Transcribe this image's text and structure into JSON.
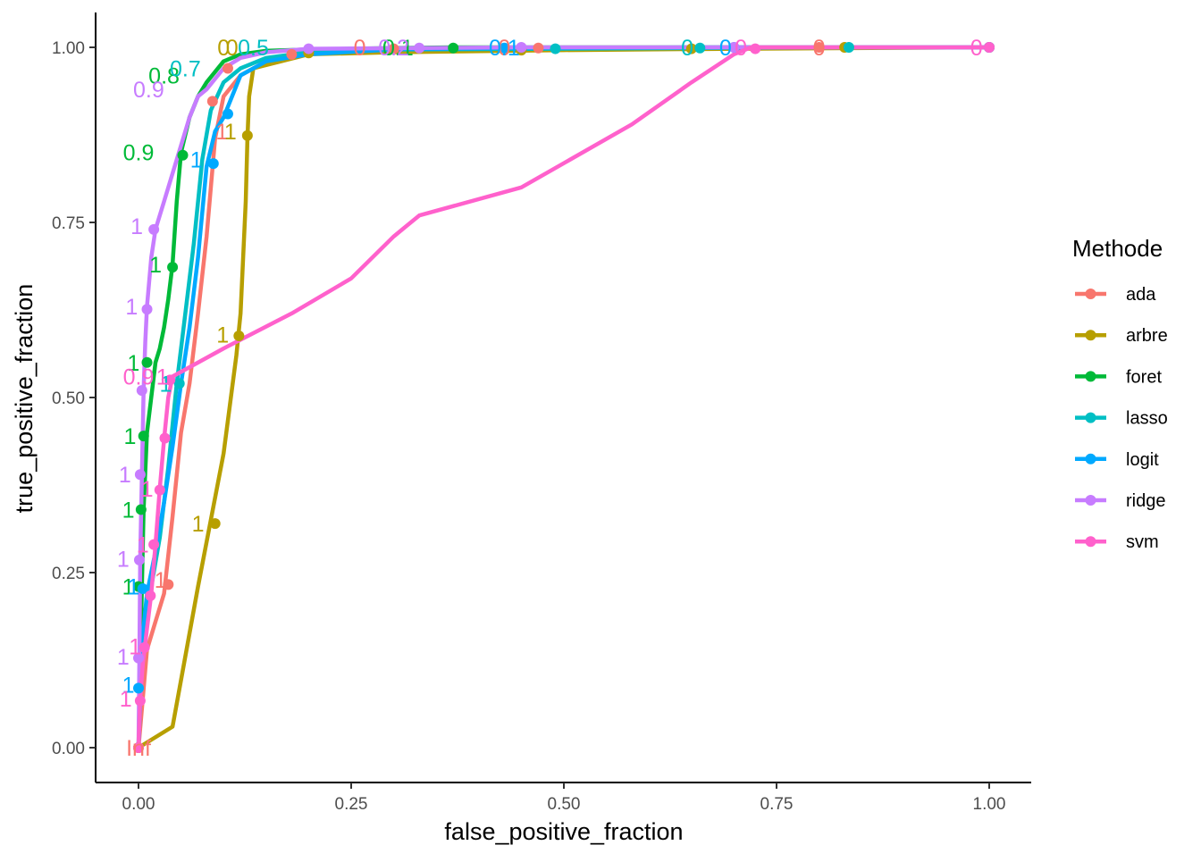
{
  "chart_data": {
    "type": "line",
    "title": "",
    "xlabel": "false_positive_fraction",
    "ylabel": "true_positive_fraction",
    "xlim": [
      0,
      1
    ],
    "ylim": [
      0,
      1
    ],
    "x_ticks": [
      "0.00",
      "0.25",
      "0.50",
      "0.75",
      "1.00"
    ],
    "y_ticks": [
      "0.00",
      "0.25",
      "0.50",
      "0.75",
      "1.00"
    ],
    "grid": false,
    "legend": {
      "title": "Methode",
      "placement": "right"
    },
    "series": [
      {
        "name": "ada",
        "color": "#F8766D",
        "x": [
          0,
          0.005,
          0.01,
          0.02,
          0.03,
          0.04,
          0.05,
          0.06,
          0.07,
          0.08,
          0.09,
          0.1,
          0.12,
          0.15,
          0.18,
          0.2,
          0.3,
          0.5,
          0.7,
          0.85,
          1
        ],
        "y": [
          0,
          0.07,
          0.14,
          0.18,
          0.22,
          0.33,
          0.45,
          0.52,
          0.62,
          0.73,
          0.87,
          0.93,
          0.96,
          0.98,
          0.99,
          0.995,
          0.998,
          0.999,
          1,
          1,
          1
        ],
        "points": [
          [
            0,
            0
          ],
          [
            0.035,
            0.233
          ],
          [
            0.087,
            0.923
          ],
          [
            0.105,
            0.97
          ],
          [
            0.18,
            0.99
          ],
          [
            0.3,
            0.998
          ],
          [
            0.47,
            0.999
          ],
          [
            0.8,
            1
          ],
          [
            1,
            1
          ]
        ],
        "labels": [
          {
            "text": "Inf",
            "x": 0,
            "y": 0
          },
          {
            "text": "1",
            "x": 0.026,
            "y": 0.24
          },
          {
            "text": "1",
            "x": 0.098,
            "y": 0.88
          },
          {
            "text": "0",
            "x": 0.26,
            "y": 1.0
          },
          {
            "text": "0",
            "x": 0.43,
            "y": 1.0
          },
          {
            "text": "0",
            "x": 0.8,
            "y": 1.0
          }
        ]
      },
      {
        "name": "arbre",
        "color": "#B79F00",
        "x": [
          0,
          0.04,
          0.07,
          0.1,
          0.115,
          0.12,
          0.123,
          0.126,
          0.128,
          0.13,
          0.135,
          0.2,
          0.3,
          0.5,
          0.7,
          1
        ],
        "y": [
          0,
          0.03,
          0.23,
          0.42,
          0.56,
          0.62,
          0.7,
          0.78,
          0.87,
          0.93,
          0.97,
          0.99,
          0.993,
          0.996,
          0.998,
          1
        ],
        "points": [
          [
            0,
            0
          ],
          [
            0.09,
            0.32
          ],
          [
            0.118,
            0.588
          ],
          [
            0.128,
            0.874
          ],
          [
            0.2,
            0.992
          ],
          [
            0.45,
            0.996
          ],
          [
            0.65,
            0.998
          ],
          [
            0.83,
            1
          ],
          [
            1,
            1
          ]
        ],
        "labels": [
          {
            "text": "1",
            "x": 0.07,
            "y": 0.32
          },
          {
            "text": "1",
            "x": 0.099,
            "y": 0.59
          },
          {
            "text": "1",
            "x": 0.108,
            "y": 0.88
          },
          {
            "text": "0",
            "x": 0.1,
            "y": 1.0
          },
          {
            "text": "0",
            "x": 0.11,
            "y": 1.0
          }
        ]
      },
      {
        "name": "foret",
        "color": "#00BA38",
        "x": [
          0,
          0.002,
          0.004,
          0.006,
          0.01,
          0.02,
          0.025,
          0.03,
          0.035,
          0.04,
          0.045,
          0.05,
          0.06,
          0.07,
          0.08,
          0.1,
          0.12,
          0.15,
          0.2,
          0.3,
          0.37,
          0.5,
          1
        ],
        "y": [
          0,
          0.12,
          0.23,
          0.34,
          0.45,
          0.55,
          0.57,
          0.6,
          0.64,
          0.69,
          0.78,
          0.85,
          0.9,
          0.93,
          0.95,
          0.98,
          0.99,
          0.995,
          0.997,
          0.999,
          1,
          1,
          1
        ],
        "points": [
          [
            0,
            0.23
          ],
          [
            0.003,
            0.34
          ],
          [
            0.006,
            0.445
          ],
          [
            0.01,
            0.55
          ],
          [
            0.04,
            0.686
          ],
          [
            0.052,
            0.846
          ],
          [
            0.37,
            0.999
          ],
          [
            1,
            1
          ]
        ],
        "labels": [
          {
            "text": "1",
            "x": -0.012,
            "y": 0.23
          },
          {
            "text": "1",
            "x": -0.012,
            "y": 0.34
          },
          {
            "text": "1",
            "x": -0.01,
            "y": 0.445
          },
          {
            "text": "1",
            "x": -0.006,
            "y": 0.55
          },
          {
            "text": "1",
            "x": 0.02,
            "y": 0.69
          },
          {
            "text": "0.9",
            "x": 0.0,
            "y": 0.85
          },
          {
            "text": "0.8",
            "x": 0.03,
            "y": 0.96
          },
          {
            "text": "0.1",
            "x": 0.305,
            "y": 1.0
          }
        ]
      },
      {
        "name": "lasso",
        "color": "#00BFC4",
        "x": [
          0,
          0.003,
          0.008,
          0.015,
          0.025,
          0.035,
          0.045,
          0.055,
          0.065,
          0.075,
          0.085,
          0.1,
          0.12,
          0.15,
          0.2,
          0.3,
          0.49,
          0.66,
          0.83,
          1
        ],
        "y": [
          0,
          0.1,
          0.17,
          0.23,
          0.3,
          0.4,
          0.52,
          0.62,
          0.72,
          0.84,
          0.91,
          0.95,
          0.97,
          0.985,
          0.993,
          0.997,
          0.998,
          0.999,
          1,
          1
        ],
        "points": [
          [
            0.048,
            0.52
          ],
          [
            0.49,
            0.998
          ],
          [
            0.66,
            0.999
          ],
          [
            0.835,
            1
          ],
          [
            1,
            1
          ]
        ],
        "labels": [
          {
            "text": "1",
            "x": 0.032,
            "y": 0.52
          },
          {
            "text": "0.7",
            "x": 0.055,
            "y": 0.97
          },
          {
            "text": "0.5",
            "x": 0.135,
            "y": 1.0
          },
          {
            "text": "0",
            "x": 0.645,
            "y": 1.0
          }
        ]
      },
      {
        "name": "logit",
        "color": "#00A9FF",
        "x": [
          0,
          0.002,
          0.005,
          0.01,
          0.02,
          0.03,
          0.04,
          0.05,
          0.06,
          0.07,
          0.08,
          0.09,
          0.1,
          0.11,
          0.12,
          0.15,
          0.2,
          0.3,
          0.43,
          0.7,
          1
        ],
        "y": [
          0,
          0.08,
          0.16,
          0.22,
          0.28,
          0.35,
          0.43,
          0.52,
          0.6,
          0.7,
          0.83,
          0.88,
          0.9,
          0.93,
          0.96,
          0.98,
          0.99,
          0.997,
          0.999,
          1,
          1
        ],
        "points": [
          [
            0,
            0.085
          ],
          [
            0.005,
            0.227
          ],
          [
            0.088,
            0.834
          ],
          [
            0.105,
            0.905
          ],
          [
            0.43,
            0.999
          ],
          [
            0.7,
            1
          ],
          [
            1,
            1
          ]
        ],
        "labels": [
          {
            "text": "1",
            "x": -0.012,
            "y": 0.09
          },
          {
            "text": "1",
            "x": -0.006,
            "y": 0.23
          },
          {
            "text": "1",
            "x": 0.068,
            "y": 0.84
          },
          {
            "text": "0.1",
            "x": 0.43,
            "y": 1.0
          },
          {
            "text": "0",
            "x": 0.69,
            "y": 1.0
          }
        ]
      },
      {
        "name": "ridge",
        "color": "#C77CFF",
        "x": [
          0,
          0.001,
          0.002,
          0.004,
          0.006,
          0.008,
          0.01,
          0.015,
          0.02,
          0.03,
          0.04,
          0.05,
          0.06,
          0.07,
          0.08,
          0.1,
          0.12,
          0.15,
          0.2,
          0.33,
          0.45,
          0.7,
          1
        ],
        "y": [
          0,
          0.13,
          0.27,
          0.39,
          0.51,
          0.58,
          0.63,
          0.7,
          0.74,
          0.78,
          0.82,
          0.86,
          0.9,
          0.93,
          0.94,
          0.97,
          0.985,
          0.993,
          0.998,
          0.999,
          1,
          1,
          1
        ],
        "points": [
          [
            0,
            0.128
          ],
          [
            0.001,
            0.268
          ],
          [
            0.002,
            0.39
          ],
          [
            0.004,
            0.51
          ],
          [
            0.01,
            0.626
          ],
          [
            0.018,
            0.74
          ],
          [
            0.2,
            0.998
          ],
          [
            0.33,
            0.999
          ],
          [
            0.45,
            1
          ],
          [
            0.7,
            1
          ],
          [
            1,
            1
          ]
        ],
        "labels": [
          {
            "text": "1",
            "x": -0.018,
            "y": 0.13
          },
          {
            "text": "1",
            "x": -0.018,
            "y": 0.27
          },
          {
            "text": "1",
            "x": -0.016,
            "y": 0.39
          },
          {
            "text": "1",
            "x": -0.008,
            "y": 0.63
          },
          {
            "text": "1",
            "x": -0.002,
            "y": 0.745
          },
          {
            "text": "0.9",
            "x": 0.012,
            "y": 0.94
          },
          {
            "text": "0.2",
            "x": 0.3,
            "y": 1.0
          }
        ]
      },
      {
        "name": "svm",
        "color": "#FF61CC",
        "x": [
          0,
          0.002,
          0.005,
          0.01,
          0.015,
          0.02,
          0.025,
          0.03,
          0.035,
          0.04,
          0.1,
          0.18,
          0.25,
          0.3,
          0.33,
          0.45,
          0.58,
          0.65,
          0.7,
          0.72,
          0.85,
          1
        ],
        "y": [
          0,
          0.07,
          0.12,
          0.17,
          0.22,
          0.29,
          0.37,
          0.44,
          0.5,
          0.53,
          0.57,
          0.62,
          0.67,
          0.73,
          0.76,
          0.8,
          0.89,
          0.95,
          0.99,
          1,
          1,
          1
        ],
        "points": [
          [
            0,
            0
          ],
          [
            0.002,
            0.067
          ],
          [
            0.007,
            0.143
          ],
          [
            0.014,
            0.217
          ],
          [
            0.018,
            0.29
          ],
          [
            0.025,
            0.368
          ],
          [
            0.031,
            0.442
          ],
          [
            0.037,
            0.525
          ],
          [
            0.725,
            0.998
          ],
          [
            1,
            1
          ]
        ],
        "labels": [
          {
            "text": "1",
            "x": -0.015,
            "y": 0.07
          },
          {
            "text": "1",
            "x": -0.004,
            "y": 0.145
          },
          {
            "text": "1",
            "x": 0.005,
            "y": 0.29
          },
          {
            "text": "1",
            "x": 0.01,
            "y": 0.37
          },
          {
            "text": "0.9",
            "x": 0.0,
            "y": 0.53
          },
          {
            "text": "1",
            "x": 0.028,
            "y": 0.53
          },
          {
            "text": "0",
            "x": 0.708,
            "y": 1.0
          },
          {
            "text": "0",
            "x": 0.985,
            "y": 1.0
          }
        ]
      }
    ]
  }
}
